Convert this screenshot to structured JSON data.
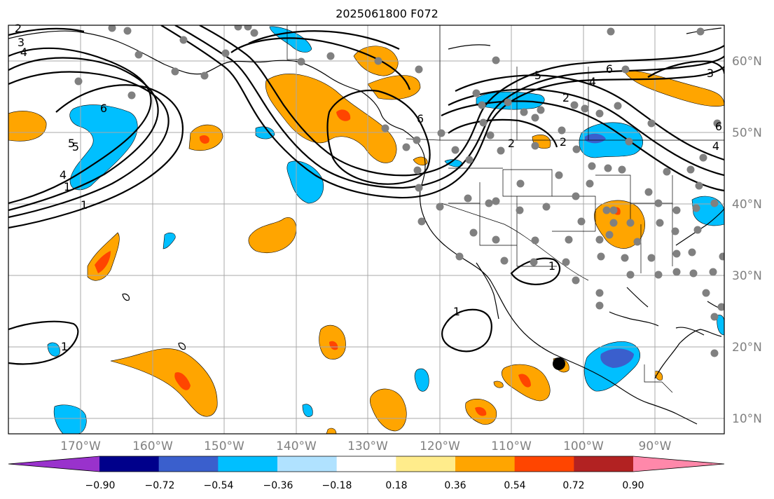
{
  "title": "2025061800 F072",
  "longitude_labels": [
    "170°W",
    "160°W",
    "150°W",
    "140°W",
    "130°W",
    "120°W",
    "110°W",
    "100°W",
    "90°W"
  ],
  "latitude_labels": [
    "60°N",
    "50°N",
    "40°N",
    "30°N",
    "20°N",
    "10°N"
  ],
  "colorbar": {
    "ticks": [
      "−0.90",
      "−0.72",
      "−0.54",
      "−0.36",
      "−0.18",
      "0.18",
      "0.36",
      "0.54",
      "0.72",
      "0.90"
    ],
    "colors": [
      "#9932cc",
      "#00008b",
      "#3a5fcd",
      "#00bfff",
      "#b0e2ff",
      "#ffffff",
      "#ffec8b",
      "#ffa500",
      "#ff4500",
      "#b22222",
      "#ff88aa"
    ]
  },
  "contour_labels": [
    "2",
    "3",
    "4",
    "5",
    "6",
    "1",
    "5",
    "4",
    "3",
    "1",
    "2",
    "6",
    "5",
    "4",
    "6",
    "2",
    "2",
    "6",
    "4",
    "1",
    "1",
    "1"
  ],
  "fill_colors": {
    "orange": "#ffa500",
    "red": "#ff4500",
    "deep_sky": "#00bfff",
    "royal_blue": "#3a5fcd"
  },
  "station_color": "#808080"
}
